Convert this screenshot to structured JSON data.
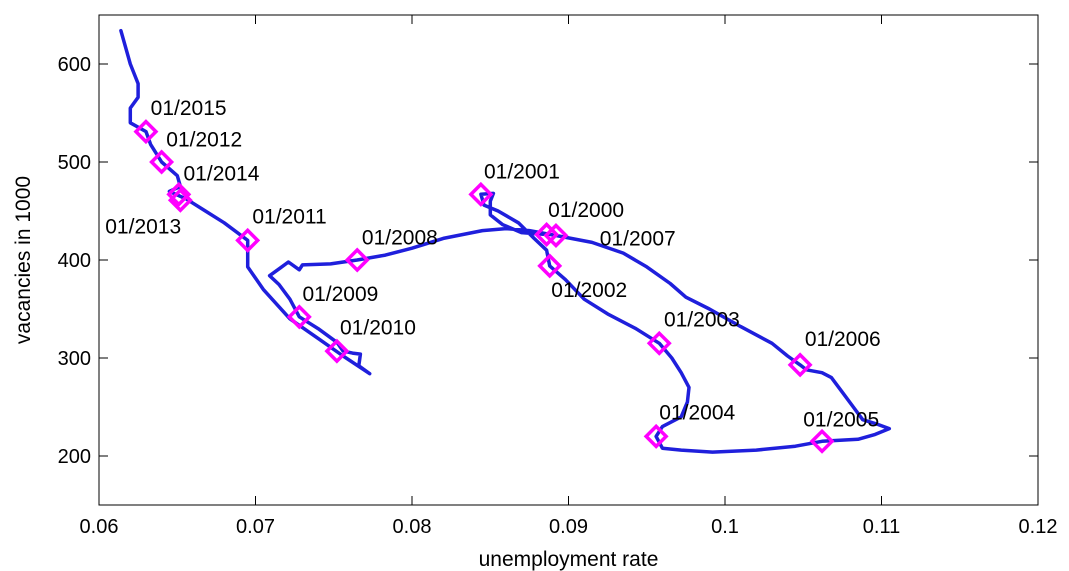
{
  "chart_data": {
    "type": "line",
    "xlabel": "unemployment rate",
    "ylabel": "vacancies in 1000",
    "xlim": [
      0.06,
      0.12
    ],
    "ylim": [
      150,
      650
    ],
    "xticks": [
      0.06,
      0.07,
      0.08,
      0.09,
      0.1,
      0.11,
      0.12
    ],
    "xtick_labels": [
      "0.06",
      "0.07",
      "0.08",
      "0.09",
      "0.1",
      "0.11",
      "0.12"
    ],
    "yticks": [
      200,
      300,
      400,
      500,
      600
    ],
    "ytick_labels": [
      "200",
      "300",
      "400",
      "500",
      "600"
    ],
    "grid": false,
    "line_color": "#1f1fdc",
    "marker_color": "#ff00ff",
    "series": [
      {
        "values": [
          [
            0.0886,
            426
          ],
          [
            0.087,
            428
          ],
          [
            0.0858,
            436
          ],
          [
            0.085,
            446
          ],
          [
            0.085,
            460
          ],
          [
            0.0852,
            468
          ],
          [
            0.0844,
            467
          ],
          [
            0.0846,
            456
          ],
          [
            0.0855,
            450
          ],
          [
            0.0868,
            438
          ],
          [
            0.0878,
            422
          ],
          [
            0.0886,
            410
          ],
          [
            0.0888,
            394
          ],
          [
            0.0898,
            380
          ],
          [
            0.091,
            360
          ],
          [
            0.0925,
            345
          ],
          [
            0.0943,
            330
          ],
          [
            0.0958,
            315
          ],
          [
            0.0966,
            300
          ],
          [
            0.0972,
            285
          ],
          [
            0.0977,
            270
          ],
          [
            0.0976,
            255
          ],
          [
            0.0972,
            240
          ],
          [
            0.096,
            230
          ],
          [
            0.0956,
            220
          ],
          [
            0.096,
            208
          ],
          [
            0.0972,
            206
          ],
          [
            0.0992,
            204
          ],
          [
            0.102,
            206
          ],
          [
            0.1045,
            210
          ],
          [
            0.1062,
            215
          ],
          [
            0.1085,
            217
          ],
          [
            0.1096,
            222
          ],
          [
            0.1105,
            228
          ],
          [
            0.1098,
            232
          ],
          [
            0.1088,
            237
          ],
          [
            0.1082,
            250
          ],
          [
            0.1075,
            265
          ],
          [
            0.1068,
            280
          ],
          [
            0.1062,
            285
          ],
          [
            0.1052,
            288
          ],
          [
            0.1048,
            293
          ],
          [
            0.104,
            302
          ],
          [
            0.103,
            315
          ],
          [
            0.101,
            332
          ],
          [
            0.099,
            350
          ],
          [
            0.0975,
            362
          ],
          [
            0.0965,
            376
          ],
          [
            0.095,
            393
          ],
          [
            0.0935,
            407
          ],
          [
            0.0915,
            418
          ],
          [
            0.0892,
            425
          ],
          [
            0.0875,
            430
          ],
          [
            0.086,
            432
          ],
          [
            0.0845,
            430
          ],
          [
            0.082,
            422
          ],
          [
            0.08,
            412
          ],
          [
            0.0783,
            405
          ],
          [
            0.0765,
            400
          ],
          [
            0.0748,
            396
          ],
          [
            0.073,
            395
          ],
          [
            0.0728,
            390
          ],
          [
            0.0721,
            398
          ],
          [
            0.0716,
            392
          ],
          [
            0.0709,
            384
          ],
          [
            0.0715,
            375
          ],
          [
            0.0722,
            360
          ],
          [
            0.0728,
            342
          ],
          [
            0.074,
            330
          ],
          [
            0.0752,
            316
          ],
          [
            0.0756,
            307
          ],
          [
            0.0762,
            305
          ],
          [
            0.0767,
            304
          ],
          [
            0.0766,
            292
          ],
          [
            0.0773,
            284
          ],
          [
            0.0756,
            302
          ],
          [
            0.074,
            320
          ],
          [
            0.0722,
            340
          ],
          [
            0.0705,
            370
          ],
          [
            0.0695,
            393
          ],
          [
            0.0695,
            420
          ],
          [
            0.068,
            438
          ],
          [
            0.0668,
            450
          ],
          [
            0.0656,
            462
          ],
          [
            0.0645,
            470
          ],
          [
            0.0652,
            475
          ],
          [
            0.065,
            486
          ],
          [
            0.064,
            500
          ],
          [
            0.0633,
            518
          ],
          [
            0.063,
            531
          ],
          [
            0.062,
            540
          ],
          [
            0.062,
            555
          ],
          [
            0.0625,
            566
          ],
          [
            0.0625,
            580
          ],
          [
            0.062,
            600
          ],
          [
            0.0614,
            634
          ]
        ]
      }
    ],
    "annotations": [
      {
        "label": "01/2000",
        "x": 0.0886,
        "y": 426,
        "lx": 0.0887,
        "ly": 444
      },
      {
        "label": "01/2001",
        "x": 0.0844,
        "y": 467,
        "lx": 0.0846,
        "ly": 483
      },
      {
        "label": "01/2002",
        "x": 0.0888,
        "y": 394,
        "lx": 0.0889,
        "ly": 362
      },
      {
        "label": "01/2003",
        "x": 0.0958,
        "y": 315,
        "lx": 0.0961,
        "ly": 332
      },
      {
        "label": "01/2004",
        "x": 0.0956,
        "y": 220,
        "lx": 0.0958,
        "ly": 237
      },
      {
        "label": "01/2005",
        "x": 0.1062,
        "y": 215,
        "lx": 0.105,
        "ly": 230
      },
      {
        "label": "01/2006",
        "x": 0.1048,
        "y": 293,
        "lx": 0.1051,
        "ly": 312
      },
      {
        "label": "01/2007",
        "x": 0.0892,
        "y": 425,
        "lx": 0.092,
        "ly": 415
      },
      {
        "label": "01/2008",
        "x": 0.0765,
        "y": 400,
        "lx": 0.0768,
        "ly": 416
      },
      {
        "label": "01/2009",
        "x": 0.0728,
        "y": 342,
        "lx": 0.073,
        "ly": 358
      },
      {
        "label": "01/2010",
        "x": 0.0752,
        "y": 307,
        "lx": 0.0754,
        "ly": 324
      },
      {
        "label": "01/2011",
        "x": 0.0695,
        "y": 420,
        "lx": 0.0698,
        "ly": 437
      },
      {
        "label": "01/2012",
        "x": 0.064,
        "y": 500,
        "lx": 0.0643,
        "ly": 516
      },
      {
        "label": "01/2013",
        "x": 0.0652,
        "y": 461,
        "lx": 0.0604,
        "ly": 427
      },
      {
        "label": "01/2014",
        "x": 0.0651,
        "y": 467,
        "lx": 0.0654,
        "ly": 481
      },
      {
        "label": "01/2015",
        "x": 0.063,
        "y": 531,
        "lx": 0.0633,
        "ly": 548
      }
    ]
  }
}
